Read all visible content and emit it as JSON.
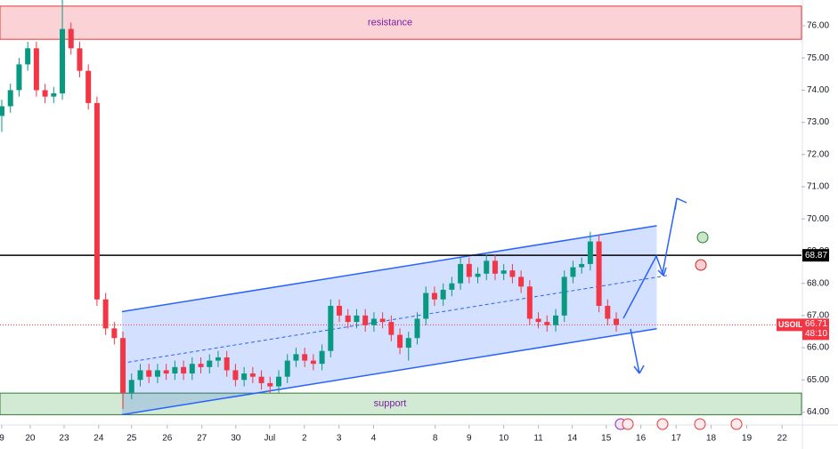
{
  "chart_data": {
    "type": "candlestick",
    "symbol": "USOIL",
    "x": [
      0,
      0.25,
      0.5,
      0.75,
      1,
      1.25,
      1.5,
      1.75,
      2,
      2.25,
      2.5,
      2.75,
      3,
      3.25,
      3.5,
      3.75,
      4,
      4.25,
      4.5,
      4.75,
      5,
      5.25,
      5.5,
      5.75,
      6,
      6.25,
      6.5,
      6.75,
      7,
      7.25,
      7.5,
      7.75,
      8,
      8.25,
      8.5,
      8.75,
      9,
      9.25,
      9.5,
      9.75,
      10,
      10.25,
      10.5,
      10.75,
      11,
      11.25,
      11.5,
      11.75,
      12,
      12.25,
      12.5,
      12.75,
      13,
      13.25,
      13.5,
      13.75,
      14,
      14.25,
      14.5,
      14.75,
      15,
      15.25,
      15.5,
      15.75,
      16,
      16.25,
      16.5,
      16.75,
      17,
      17.25,
      17.5,
      17.75
    ],
    "open": [
      73.2,
      73.5,
      74.0,
      74.8,
      75.3,
      74.0,
      73.8,
      73.9,
      75.9,
      75.3,
      74.6,
      73.6,
      67.5,
      66.6,
      66.3,
      64.6,
      65.0,
      65.3,
      65.1,
      65.3,
      65.2,
      65.4,
      65.2,
      65.5,
      65.4,
      65.6,
      65.7,
      65.3,
      65.0,
      65.2,
      65.1,
      64.9,
      64.8,
      65.1,
      65.6,
      65.8,
      65.6,
      65.5,
      65.9,
      67.3,
      67.0,
      66.8,
      67.0,
      66.7,
      66.9,
      66.8,
      66.4,
      66.0,
      66.3,
      66.9,
      67.7,
      67.5,
      67.8,
      68.0,
      68.6,
      68.2,
      68.3,
      68.7,
      68.3,
      68.4,
      68.2,
      67.9,
      66.9,
      66.8,
      66.7,
      67.0,
      68.2,
      68.5,
      68.6,
      69.3,
      67.3,
      66.9
    ],
    "high": [
      73.7,
      74.2,
      75.0,
      75.5,
      75.5,
      74.2,
      74.1,
      76.8,
      76.1,
      75.5,
      74.8,
      73.8,
      67.7,
      66.8,
      66.5,
      65.2,
      65.5,
      65.5,
      65.5,
      65.5,
      65.6,
      65.6,
      65.7,
      65.7,
      65.8,
      65.9,
      65.9,
      65.5,
      65.4,
      65.4,
      65.3,
      65.1,
      65.3,
      65.8,
      66.0,
      66.0,
      65.8,
      66.1,
      67.5,
      67.5,
      67.2,
      67.2,
      67.2,
      67.1,
      67.1,
      67.0,
      66.6,
      66.5,
      67.1,
      67.9,
      67.9,
      68.0,
      68.2,
      68.8,
      68.8,
      68.5,
      68.9,
      68.9,
      68.6,
      68.6,
      68.4,
      68.1,
      67.1,
      67.0,
      67.2,
      68.4,
      68.7,
      68.8,
      69.6,
      69.5,
      67.5,
      67.1
    ],
    "low": [
      72.7,
      73.3,
      73.8,
      74.6,
      73.8,
      73.6,
      73.6,
      73.7,
      75.1,
      74.4,
      73.4,
      67.3,
      66.4,
      66.1,
      64.1,
      64.4,
      64.8,
      64.9,
      64.9,
      65.0,
      65.0,
      65.0,
      65.0,
      65.2,
      65.2,
      65.4,
      65.1,
      64.8,
      64.8,
      64.9,
      64.7,
      64.6,
      64.6,
      64.9,
      65.4,
      65.4,
      65.3,
      65.3,
      65.7,
      66.8,
      66.6,
      66.6,
      66.5,
      66.5,
      66.6,
      66.2,
      65.8,
      65.6,
      66.1,
      66.7,
      67.3,
      67.3,
      67.6,
      67.8,
      68.0,
      68.0,
      68.1,
      68.1,
      68.1,
      68.0,
      67.7,
      66.7,
      66.6,
      66.5,
      66.5,
      66.8,
      68.0,
      68.3,
      68.4,
      67.1,
      66.7,
      66.5
    ],
    "close": [
      73.5,
      74.0,
      74.8,
      75.3,
      74.0,
      73.8,
      73.9,
      75.9,
      75.3,
      74.6,
      73.6,
      67.5,
      66.6,
      66.3,
      64.6,
      65.0,
      65.3,
      65.1,
      65.3,
      65.2,
      65.4,
      65.2,
      65.5,
      65.4,
      65.6,
      65.7,
      65.3,
      65.0,
      65.2,
      65.1,
      64.9,
      64.8,
      65.1,
      65.6,
      65.8,
      65.6,
      65.5,
      65.9,
      67.3,
      67.0,
      66.8,
      67.0,
      66.7,
      66.9,
      66.8,
      66.4,
      66.0,
      66.3,
      66.9,
      67.7,
      67.5,
      67.8,
      68.0,
      68.6,
      68.2,
      68.3,
      68.7,
      68.3,
      68.4,
      68.2,
      67.9,
      66.9,
      66.8,
      66.7,
      67.0,
      68.2,
      68.5,
      68.6,
      69.3,
      67.3,
      66.9,
      66.71
    ],
    "up_color": "#089981",
    "down_color": "#f23645",
    "xlim": [
      0,
      23.1
    ],
    "ylim": [
      63.6,
      76.8
    ],
    "xticks": [
      {
        "value": 0,
        "label": "9"
      },
      {
        "value": 0.82,
        "label": "20"
      },
      {
        "value": 1.8,
        "label": "23"
      },
      {
        "value": 2.8,
        "label": "24"
      },
      {
        "value": 3.75,
        "label": "25"
      },
      {
        "value": 4.78,
        "label": "26"
      },
      {
        "value": 5.78,
        "label": "27"
      },
      {
        "value": 6.76,
        "label": "30"
      },
      {
        "value": 7.74,
        "label": "Jul"
      },
      {
        "value": 8.74,
        "label": "2"
      },
      {
        "value": 9.74,
        "label": "3"
      },
      {
        "value": 10.74,
        "label": "4"
      },
      {
        "value": 12.52,
        "label": "8"
      },
      {
        "value": 13.5,
        "label": "9"
      },
      {
        "value": 14.5,
        "label": "10"
      },
      {
        "value": 15.5,
        "label": "11"
      },
      {
        "value": 16.48,
        "label": "14"
      },
      {
        "value": 17.46,
        "label": "15"
      },
      {
        "value": 18.46,
        "label": "16"
      },
      {
        "value": 19.48,
        "label": "17"
      },
      {
        "value": 20.49,
        "label": "18"
      },
      {
        "value": 21.52,
        "label": "19"
      },
      {
        "value": 22.54,
        "label": "22"
      }
    ],
    "yticks": [
      {
        "value": 64,
        "label": "64.00"
      },
      {
        "value": 65,
        "label": "65.00"
      },
      {
        "value": 66,
        "label": "66.00"
      },
      {
        "value": 67,
        "label": "67.00"
      },
      {
        "value": 68,
        "label": "68.00"
      },
      {
        "value": 69,
        "label": "69.00"
      },
      {
        "value": 70,
        "label": "70.00"
      },
      {
        "value": 71,
        "label": "71.00"
      },
      {
        "value": 72,
        "label": "72.00"
      },
      {
        "value": 73,
        "label": "73.00"
      },
      {
        "value": 74,
        "label": "74.00"
      },
      {
        "value": 75,
        "label": "75.00"
      },
      {
        "value": 76,
        "label": "76.00"
      }
    ],
    "zones": [
      {
        "label": "resistance",
        "from": 75.58,
        "to": 76.61,
        "color": "#f7a8b0"
      },
      {
        "label": "support",
        "from": 63.92,
        "to": 64.59,
        "color": "#a5d6a7"
      }
    ],
    "level": {
      "value": 68.87,
      "label": "68.87"
    },
    "last_price": {
      "value": 66.71,
      "label": "66.71",
      "countdown": "48:10"
    },
    "channel": {
      "x": [
        3.47,
        18.92
      ],
      "upper": [
        67.12,
        69.79
      ],
      "lower": [
        63.92,
        66.59
      ],
      "color": "#2962ff"
    }
  }
}
